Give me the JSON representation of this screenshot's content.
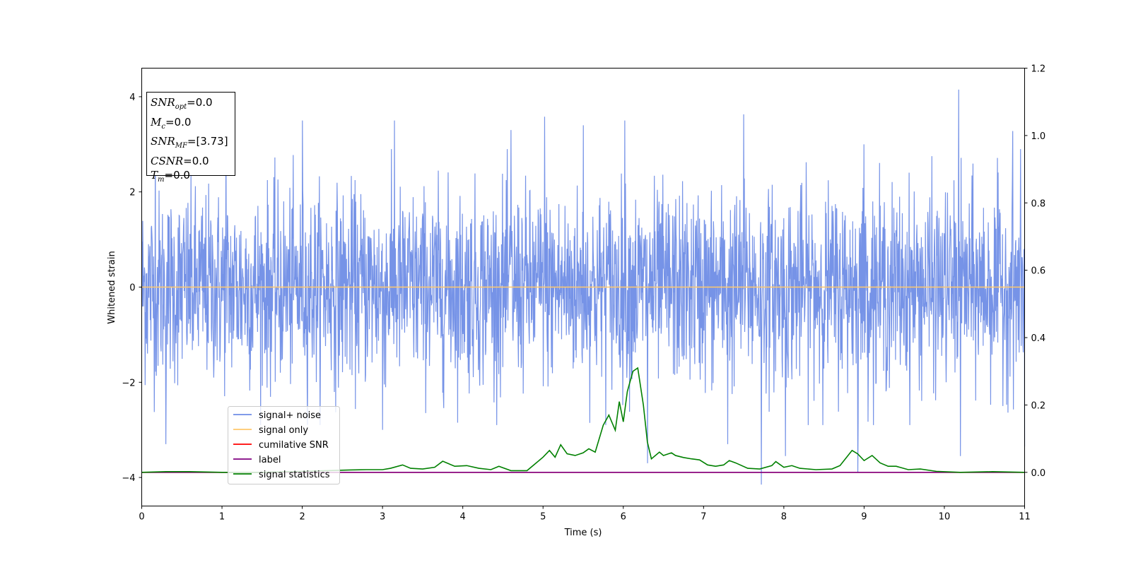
{
  "chart_data": {
    "type": "line",
    "xlabel": "Time (s)",
    "ylabel": "Whitened strain",
    "xlim": [
      0,
      11
    ],
    "ylim": [
      -4.6,
      4.6
    ],
    "y2lim": [
      -0.1,
      1.2
    ],
    "x_ticks": [
      "0",
      "1",
      "2",
      "3",
      "4",
      "5",
      "6",
      "7",
      "8",
      "9",
      "10",
      "11"
    ],
    "y_ticks": [
      "4",
      "2",
      "0",
      "−2",
      "−4"
    ],
    "y_tick_values": [
      4,
      2,
      0,
      -2,
      -4
    ],
    "y2_ticks": [
      "1.2",
      "1.0",
      "0.8",
      "0.6",
      "0.4",
      "0.2",
      "0.0"
    ],
    "y2_tick_values": [
      1.2,
      1.0,
      0.8,
      0.6,
      0.4,
      0.2,
      0.0
    ],
    "legend_placement": "lower-left",
    "annotation": [
      {
        "main": "SNR",
        "sub": "opt",
        "value": "=0.0"
      },
      {
        "main": "M",
        "sub": "c",
        "value": "=0.0"
      },
      {
        "main": "SNR",
        "sub": "MF",
        "value": "=[3.73]"
      },
      {
        "main": "CSNR",
        "sub": "",
        "value": "=0.0"
      },
      {
        "main": "T",
        "sub": "m",
        "value": "=0.0"
      }
    ],
    "series": [
      {
        "name": "signal+ noise",
        "color": "#6f8de6",
        "axis": "left",
        "noise_sigma": 1.0,
        "spikes": [
          [
            0.17,
            3.3
          ],
          [
            1.05,
            3.3
          ],
          [
            2.0,
            3.5
          ],
          [
            3.15,
            3.5
          ],
          [
            4.6,
            3.3
          ],
          [
            5.02,
            3.58
          ],
          [
            5.5,
            3.4
          ],
          [
            6.02,
            3.5
          ],
          [
            7.5,
            3.63
          ],
          [
            9.0,
            3.0
          ],
          [
            10.18,
            4.15
          ],
          [
            10.85,
            3.28
          ],
          [
            0.3,
            -3.3
          ],
          [
            3.0,
            -3.0
          ],
          [
            6.3,
            -3.7
          ],
          [
            7.3,
            -3.3
          ],
          [
            7.72,
            -4.15
          ],
          [
            8.02,
            -3.55
          ],
          [
            8.92,
            -3.9
          ],
          [
            10.2,
            -3.55
          ],
          [
            11.0,
            -3.35
          ]
        ]
      },
      {
        "name": "signal only",
        "color": "#ffc86b",
        "axis": "left",
        "x": [
          0,
          11
        ],
        "y": [
          0.0,
          0.0
        ]
      },
      {
        "name": "cumilative SNR",
        "color": "#ff0000",
        "axis": "right",
        "x": [
          0,
          11
        ],
        "y": [
          0.0,
          0.0
        ]
      },
      {
        "name": "label",
        "color": "#800080",
        "axis": "right",
        "x": [
          0,
          11
        ],
        "y": [
          0.0,
          0.0
        ]
      },
      {
        "name": "signal statistics",
        "color": "#008000",
        "axis": "right",
        "x": [
          0,
          0.3,
          0.6,
          1.0,
          1.5,
          2.0,
          2.3,
          2.6,
          2.8,
          3.0,
          3.1,
          3.25,
          3.35,
          3.5,
          3.65,
          3.75,
          3.9,
          4.05,
          4.2,
          4.35,
          4.45,
          4.6,
          4.8,
          4.9,
          5.0,
          5.08,
          5.15,
          5.22,
          5.3,
          5.4,
          5.5,
          5.57,
          5.65,
          5.75,
          5.82,
          5.9,
          5.95,
          6.0,
          6.05,
          6.12,
          6.18,
          6.25,
          6.3,
          6.35,
          6.45,
          6.5,
          6.6,
          6.65,
          6.75,
          6.85,
          6.95,
          7.05,
          7.15,
          7.25,
          7.32,
          7.4,
          7.55,
          7.7,
          7.85,
          7.9,
          8.0,
          8.1,
          8.2,
          8.4,
          8.6,
          8.7,
          8.85,
          8.92,
          9.0,
          9.1,
          9.2,
          9.3,
          9.4,
          9.55,
          9.7,
          9.9,
          10.2,
          10.6,
          11.0
        ],
        "y": [
          0.0,
          0.002,
          0.002,
          0.0,
          0.0,
          0.003,
          0.005,
          0.007,
          0.008,
          0.008,
          0.012,
          0.022,
          0.012,
          0.01,
          0.015,
          0.033,
          0.018,
          0.02,
          0.012,
          0.008,
          0.018,
          0.005,
          0.005,
          0.025,
          0.045,
          0.065,
          0.045,
          0.082,
          0.055,
          0.05,
          0.058,
          0.07,
          0.06,
          0.14,
          0.17,
          0.125,
          0.21,
          0.15,
          0.24,
          0.3,
          0.31,
          0.2,
          0.09,
          0.04,
          0.06,
          0.05,
          0.058,
          0.05,
          0.044,
          0.04,
          0.037,
          0.022,
          0.018,
          0.022,
          0.035,
          0.028,
          0.012,
          0.01,
          0.02,
          0.032,
          0.015,
          0.02,
          0.012,
          0.008,
          0.01,
          0.02,
          0.065,
          0.055,
          0.035,
          0.05,
          0.028,
          0.018,
          0.018,
          0.008,
          0.01,
          0.003,
          0.0,
          0.002,
          0.0
        ]
      }
    ]
  }
}
